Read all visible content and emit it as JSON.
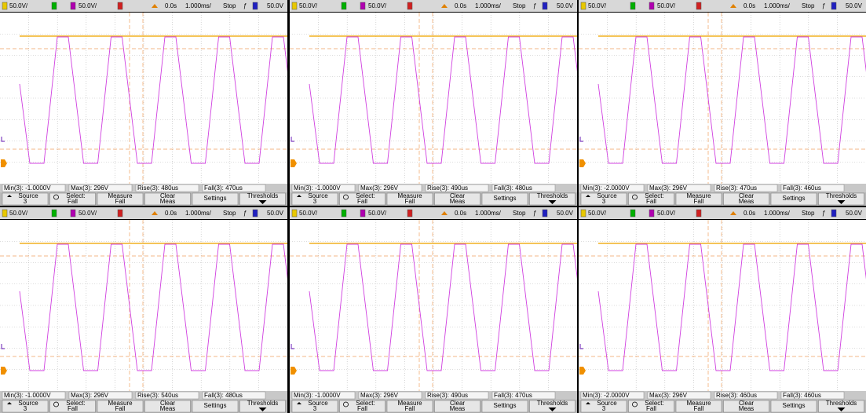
{
  "header": {
    "ch1_scale": "50.0V/",
    "ch3_scale": "50.0V/",
    "time_offset": "0.0s",
    "time_scale": "1.000ms/",
    "run_state": "Stop",
    "trigger_symbol": "ƒ",
    "trigger_level": "50.0V"
  },
  "buttons": [
    {
      "lines": [
        "Source",
        "3"
      ]
    },
    {
      "lines": [
        "Select:",
        "Fall"
      ]
    },
    {
      "lines": [
        "Measure",
        "Fall"
      ]
    },
    {
      "lines": [
        "Clear",
        "Meas"
      ]
    },
    {
      "lines": [
        "Settings"
      ]
    },
    {
      "lines": [
        "Thresholds"
      ]
    }
  ],
  "panels": [
    {
      "measurements": [
        "Min(3): -1.0000V",
        "Max(3): 296V",
        "Rise(3): 480us",
        "Fall(3): 470us"
      ]
    },
    {
      "measurements": [
        "Min(3): -1.0000V",
        "Max(3): 296V",
        "Rise(3): 490us",
        "Fall(3): 480us"
      ]
    },
    {
      "measurements": [
        "Min(3): -2.0000V",
        "Max(3): 296V",
        "Rise(3): 470us",
        "Fall(3): 460us"
      ]
    },
    {
      "measurements": [
        "Min(3): -1.0000V",
        "Max(3): 296V",
        "Rise(3): 540us",
        "Fall(3): 480us"
      ]
    },
    {
      "measurements": [
        "Min(3): -1.0000V",
        "Max(3): 296V",
        "Rise(3): 490us",
        "Fall(3): 470us"
      ]
    },
    {
      "measurements": [
        "Min(3): -2.0000V",
        "Max(3): 296V",
        "Rise(3): 460us",
        "Fall(3): 460us"
      ]
    }
  ]
}
